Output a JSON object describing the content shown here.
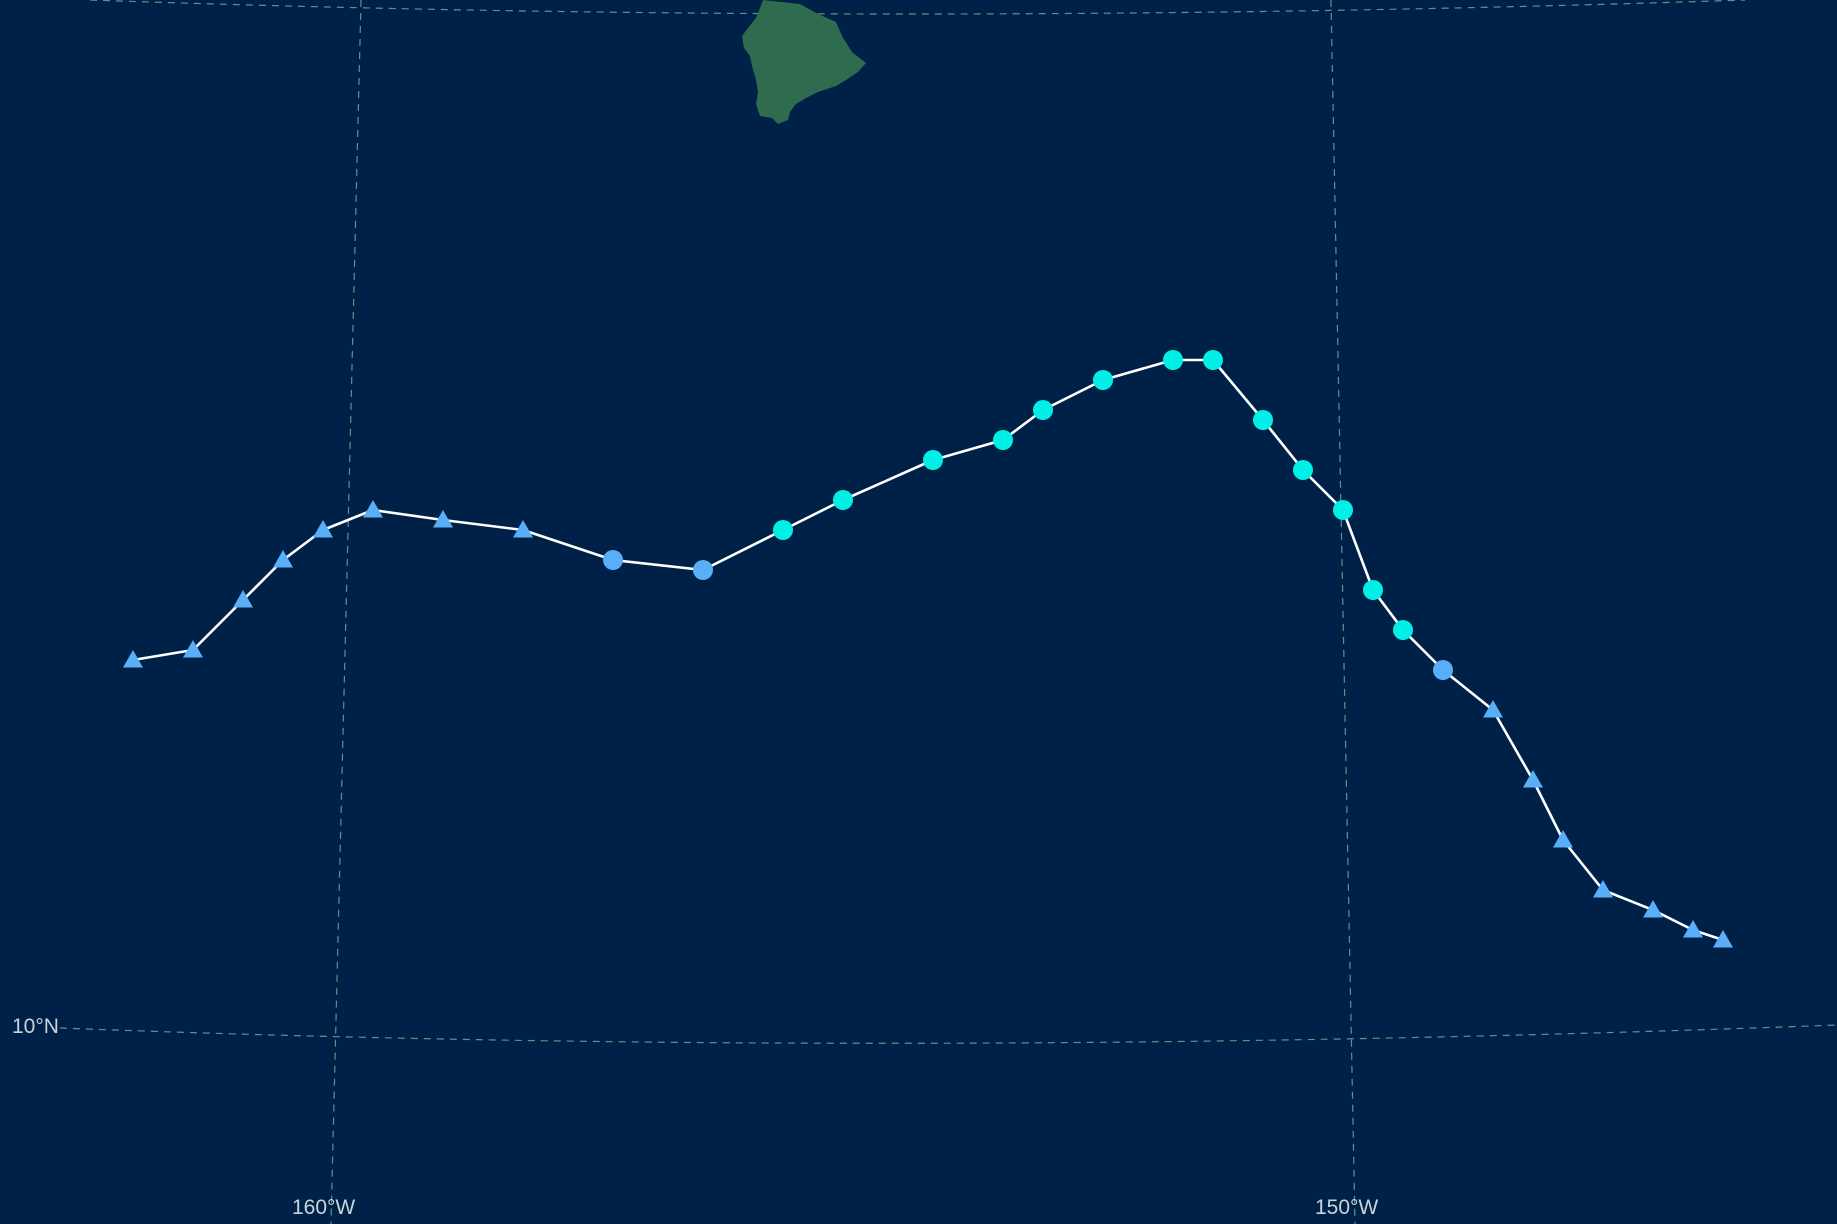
{
  "map": {
    "background_color": "#002147",
    "land_color": "#2e6b4f",
    "graticule_color": "#5fae96",
    "labels": {
      "lat_10": "10°N",
      "lon_160": "160°W",
      "lon_150": "150°W"
    }
  },
  "legend_colors": {
    "tropical_depression": "#5aadf7",
    "tropical_storm_like": "#5aadf7",
    "hurricane_like": "#00f0e8"
  },
  "track": {
    "line_color": "#ffffff",
    "points": [
      {
        "lon": -162.1,
        "lat": 13.8,
        "marker": "triangle"
      },
      {
        "lon": -161.5,
        "lat": 13.9,
        "marker": "triangle"
      },
      {
        "lon": -161.0,
        "lat": 14.4,
        "marker": "triangle"
      },
      {
        "lon": -160.6,
        "lat": 14.8,
        "marker": "triangle"
      },
      {
        "lon": -160.2,
        "lat": 15.1,
        "marker": "triangle"
      },
      {
        "lon": -159.7,
        "lat": 15.3,
        "marker": "triangle"
      },
      {
        "lon": -159.0,
        "lat": 15.2,
        "marker": "triangle"
      },
      {
        "lon": -158.2,
        "lat": 15.1,
        "marker": "triangle"
      },
      {
        "lon": -157.3,
        "lat": 14.8,
        "marker": "circle",
        "color": "blue"
      },
      {
        "lon": -156.4,
        "lat": 14.7,
        "marker": "circle",
        "color": "blue"
      },
      {
        "lon": -155.6,
        "lat": 15.1,
        "marker": "circle",
        "color": "cyan"
      },
      {
        "lon": -155.0,
        "lat": 15.4,
        "marker": "circle",
        "color": "cyan"
      },
      {
        "lon": -154.1,
        "lat": 15.8,
        "marker": "circle",
        "color": "cyan"
      },
      {
        "lon": -153.4,
        "lat": 16.0,
        "marker": "circle",
        "color": "cyan"
      },
      {
        "lon": -153.0,
        "lat": 16.3,
        "marker": "circle",
        "color": "cyan"
      },
      {
        "lon": -152.4,
        "lat": 16.6,
        "marker": "circle",
        "color": "cyan"
      },
      {
        "lon": -151.7,
        "lat": 16.8,
        "marker": "circle",
        "color": "cyan"
      },
      {
        "lon": -151.3,
        "lat": 16.8,
        "marker": "circle",
        "color": "cyan"
      },
      {
        "lon": -150.8,
        "lat": 16.2,
        "marker": "circle",
        "color": "cyan"
      },
      {
        "lon": -150.4,
        "lat": 15.7,
        "marker": "circle",
        "color": "cyan"
      },
      {
        "lon": -150.0,
        "lat": 15.3,
        "marker": "circle",
        "color": "cyan"
      },
      {
        "lon": -149.7,
        "lat": 14.5,
        "marker": "circle",
        "color": "cyan"
      },
      {
        "lon": -149.4,
        "lat": 14.1,
        "marker": "circle",
        "color": "cyan"
      },
      {
        "lon": -149.0,
        "lat": 13.7,
        "marker": "circle",
        "color": "blue"
      },
      {
        "lon": -148.5,
        "lat": 13.3,
        "marker": "triangle"
      },
      {
        "lon": -148.1,
        "lat": 12.6,
        "marker": "triangle"
      },
      {
        "lon": -147.8,
        "lat": 12.0,
        "marker": "triangle"
      },
      {
        "lon": -147.4,
        "lat": 11.5,
        "marker": "triangle"
      },
      {
        "lon": -146.9,
        "lat": 11.3,
        "marker": "triangle"
      },
      {
        "lon": -146.5,
        "lat": 11.1,
        "marker": "triangle"
      },
      {
        "lon": -146.2,
        "lat": 11.0,
        "marker": "triangle"
      }
    ]
  }
}
